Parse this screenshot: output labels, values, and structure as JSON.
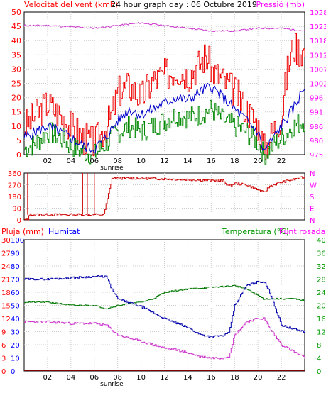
{
  "header": {
    "left_label": "Velocitat del vent (kmh)",
    "center_label": "24 hour graph day : 06 Octubre 2019",
    "right_label": "Pressió (mb)"
  },
  "colors": {
    "wind": "#cc0000",
    "gust": "#ee0000",
    "avg": "#0000cc",
    "min": "#008800",
    "pressure": "#cc33cc",
    "rain": "#cc0000",
    "humidity": "#0000aa",
    "temperature": "#007700",
    "dewpoint": "#cc33cc",
    "grid": "#cccccc",
    "label_red": "#ff0000",
    "label_magenta": "#ff00ff",
    "label_blue": "#0000ff",
    "label_green": "#009900"
  },
  "chart_data": [
    {
      "type": "line",
      "title": "24 hour graph day : 06 Octubre 2019",
      "ylabel": "Velocitat del vent (kmh)",
      "ylabel_right": "Pressió (mb)",
      "ylim": [
        0,
        50
      ],
      "yticks": [
        "0",
        "5",
        "10",
        "15",
        "20",
        "25",
        "30",
        "35",
        "40",
        "45",
        "50"
      ],
      "ylim_right": [
        975,
        1028
      ],
      "yticks_right": [
        "975",
        "980",
        "986",
        "991",
        "996",
        "1002",
        "1007",
        "1012",
        "1018",
        "1023",
        "1028"
      ],
      "xticks": [
        "02",
        "04",
        "06",
        "08",
        "10",
        "12",
        "14",
        "16",
        "18",
        "20",
        "22"
      ],
      "x_annotation": "sunrise",
      "series": [
        {
          "key": "gust",
          "x": [
            0,
            1,
            2,
            3,
            4,
            5,
            6,
            7,
            7.5,
            8,
            9,
            10,
            11,
            12,
            13,
            14,
            15,
            15.5,
            16,
            17,
            18,
            19,
            20,
            20.5,
            21,
            22,
            22.5,
            23,
            24
          ],
          "values": [
            10,
            14,
            18,
            14,
            10,
            6,
            4,
            10,
            14,
            22,
            24,
            20,
            26,
            28,
            30,
            28,
            32,
            35,
            30,
            26,
            22,
            16,
            10,
            2,
            6,
            14,
            30,
            38,
            36
          ]
        },
        {
          "key": "avg",
          "x": [
            0,
            1,
            2,
            3,
            4,
            5,
            6,
            7,
            8,
            9,
            10,
            11,
            12,
            13,
            14,
            15,
            16,
            17,
            18,
            19,
            20,
            20.5,
            21,
            22,
            23,
            24
          ],
          "values": [
            6,
            8,
            10,
            8,
            6,
            3,
            2,
            6,
            12,
            16,
            14,
            16,
            18,
            20,
            19,
            22,
            24,
            20,
            16,
            12,
            8,
            1,
            4,
            10,
            16,
            24
          ]
        },
        {
          "key": "min",
          "x": [
            0,
            1,
            2,
            3,
            4,
            5,
            6,
            7,
            8,
            9,
            10,
            11,
            12,
            13,
            14,
            15,
            16,
            17,
            18,
            19,
            20,
            20.5,
            21,
            22,
            23,
            24
          ],
          "values": [
            2,
            4,
            8,
            6,
            3,
            1,
            0,
            4,
            8,
            10,
            8,
            10,
            12,
            14,
            13,
            14,
            16,
            12,
            10,
            8,
            4,
            0,
            2,
            6,
            10,
            12
          ]
        },
        {
          "key": "pressure",
          "axis": "right",
          "x": [
            0,
            2,
            4,
            6,
            8,
            10,
            12,
            14,
            16,
            18,
            20,
            22,
            24
          ],
          "values": [
            1023,
            1023,
            1022.5,
            1022,
            1023,
            1024,
            1023,
            1022,
            1021,
            1021,
            1022,
            1022,
            1021
          ]
        }
      ]
    },
    {
      "type": "line",
      "ylim": [
        0,
        360
      ],
      "yticks": [
        "0",
        "90",
        "180",
        "270",
        "360"
      ],
      "yticks_right": [
        "N",
        "E",
        "S",
        "W",
        "N"
      ],
      "series": [
        {
          "key": "direction",
          "x": [
            0,
            0.3,
            0.3,
            5.2,
            5.2,
            5.2,
            6.8,
            7.5,
            10,
            14,
            17,
            17.5,
            18,
            19,
            20,
            20.5,
            21,
            22,
            22.5,
            24
          ],
          "values": [
            0,
            0,
            40,
            40,
            40,
            40,
            40,
            320,
            320,
            310,
            300,
            260,
            280,
            270,
            230,
            210,
            260,
            290,
            300,
            330
          ],
          "spikes": [
            {
              "x": 5.0,
              "to": 360
            },
            {
              "x": 5.4,
              "to": 360
            },
            {
              "x": 6.0,
              "to": 360
            },
            {
              "x": 0.3,
              "to": 360
            }
          ]
        }
      ]
    },
    {
      "type": "line",
      "ylabel": "Pluja (mm)",
      "ylabel2": "Humitat",
      "ylabel_right": "Temperatura (°C)",
      "ylabel_right2": "Punt rosada",
      "rain_ticks": [
        "0",
        "3",
        "6",
        "9",
        "12",
        "15",
        "18",
        "21",
        "24",
        "27",
        "30"
      ],
      "humidity_ticks": [
        "0",
        "10",
        "20",
        "30",
        "40",
        "50",
        "60",
        "70",
        "80",
        "90",
        "100"
      ],
      "temp_ticks": [
        "0",
        "4",
        "8",
        "12",
        "16",
        "20",
        "24",
        "28",
        "32",
        "36",
        "40"
      ],
      "temp_ticks_right": [
        "0",
        "4",
        "8",
        "12",
        "16",
        "20",
        "24",
        "28",
        "32",
        "36",
        "40"
      ],
      "xticks": [
        "02",
        "04",
        "06",
        "08",
        "10",
        "12",
        "14",
        "16",
        "18",
        "20",
        "22"
      ],
      "x_annotation": "sunrise",
      "series": [
        {
          "key": "rain",
          "axis": "rain",
          "x": [
            0,
            24
          ],
          "values": [
            0,
            0
          ]
        },
        {
          "key": "humidity",
          "axis": "humidity",
          "x": [
            0,
            2,
            4,
            6,
            7,
            7.5,
            8,
            10,
            12,
            14,
            15,
            16,
            17,
            17.5,
            18,
            19,
            20,
            20.5,
            21,
            22,
            23,
            24
          ],
          "values": [
            70,
            70,
            71,
            72,
            72,
            62,
            55,
            49,
            40,
            33,
            28,
            26,
            27,
            29,
            50,
            65,
            68,
            68,
            60,
            35,
            32,
            30
          ]
        },
        {
          "key": "temperature",
          "axis": "temp",
          "x": [
            0,
            2,
            4,
            6,
            7,
            8,
            10,
            11,
            12,
            14,
            16,
            18,
            19,
            20,
            20.5,
            21,
            22,
            23,
            24
          ],
          "values": [
            21,
            21,
            20,
            20,
            19,
            20,
            21,
            22,
            24,
            25,
            25.5,
            26,
            25,
            23,
            22,
            22,
            22,
            22,
            21.5
          ]
        },
        {
          "key": "dewpoint",
          "axis": "temp",
          "x": [
            0,
            2,
            4,
            6,
            7,
            8,
            9,
            10,
            11,
            12,
            13,
            14,
            15,
            16,
            17,
            17.5,
            18,
            19,
            20,
            20.5,
            21,
            22,
            23,
            24
          ],
          "values": [
            15,
            15,
            14.5,
            14.5,
            14,
            11,
            10,
            9,
            8,
            7,
            6.5,
            5.5,
            4.5,
            4,
            4,
            4.5,
            11,
            15,
            16,
            16,
            13,
            8,
            6,
            4
          ]
        }
      ]
    }
  ]
}
